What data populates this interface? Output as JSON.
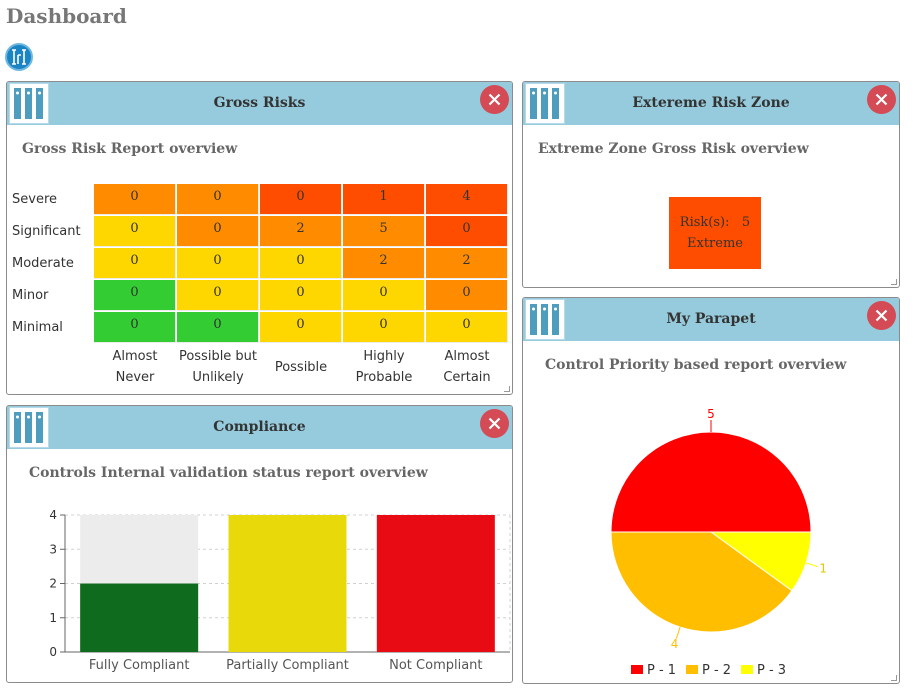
{
  "page": {
    "title": "Dashboard"
  },
  "colors": {
    "header": "#95cbdc",
    "close": "#d44a55",
    "green": "#33cc33",
    "yellow": "#ffd700",
    "orange": "#ff8c00",
    "red_orange": "#ff4d00",
    "bar_green": "#0f6b1d",
    "bar_yellow": "#e8da0a",
    "bar_red": "#e80b14",
    "bar_grey": "#ececec"
  },
  "panels": {
    "gross_risks": {
      "title": "Gross Risks",
      "subtitle": "Gross Risk Report overview",
      "chart_data": {
        "type": "heatmap",
        "rows": [
          "Severe",
          "Significant",
          "Moderate",
          "Minor",
          "Minimal"
        ],
        "columns": [
          "Almost Never",
          "Possible but Unlikely",
          "Possible",
          "Highly Probable",
          "Almost Certain"
        ],
        "column_lines": [
          [
            "Almost",
            "Never"
          ],
          [
            "Possible but",
            "Unlikely"
          ],
          [
            "Possible"
          ],
          [
            "Highly",
            "Probable"
          ],
          [
            "Almost",
            "Certain"
          ]
        ],
        "values": [
          [
            0,
            0,
            0,
            1,
            4
          ],
          [
            0,
            0,
            2,
            5,
            0
          ],
          [
            0,
            0,
            0,
            2,
            2
          ],
          [
            0,
            0,
            0,
            0,
            0
          ],
          [
            0,
            0,
            0,
            0,
            0
          ]
        ],
        "colors": [
          [
            "#ff8c00",
            "#ff8c00",
            "#ff4d00",
            "#ff4d00",
            "#ff4d00"
          ],
          [
            "#ffd700",
            "#ff8c00",
            "#ff8c00",
            "#ff8c00",
            "#ff4d00"
          ],
          [
            "#ffd700",
            "#ffd700",
            "#ffd700",
            "#ff8c00",
            "#ff8c00"
          ],
          [
            "#33cc33",
            "#ffd700",
            "#ffd700",
            "#ffd700",
            "#ff8c00"
          ],
          [
            "#33cc33",
            "#33cc33",
            "#ffd700",
            "#ffd700",
            "#ffd700"
          ]
        ]
      }
    },
    "extreme": {
      "title": "Extereme Risk Zone",
      "subtitle": "Extreme Zone Gross Risk overview",
      "risk_label": "Risk(s):",
      "risk_count": "5",
      "zone_label": "Extreme"
    },
    "compliance": {
      "title": "Compliance",
      "subtitle": "Controls Internal validation status report overview",
      "chart_data": {
        "type": "bar",
        "categories": [
          "Fully Compliant",
          "Partially Compliant",
          "Not Compliant"
        ],
        "values": [
          2,
          4,
          4
        ],
        "total": [
          4,
          4,
          4
        ],
        "colors": [
          "#0f6b1d",
          "#e8da0a",
          "#e80b14"
        ],
        "ylim": [
          0,
          4
        ],
        "yticks": [
          "0",
          "1",
          "2",
          "3",
          "4"
        ]
      }
    },
    "parapet": {
      "title": "My Parapet",
      "subtitle": "Control Priority based report overview",
      "chart_data": {
        "type": "pie",
        "slices": [
          {
            "label": "P - 1",
            "value": 5,
            "color": "#ff0000",
            "text": "5"
          },
          {
            "label": "P - 3",
            "value": 1,
            "color": "#ffff00",
            "text": "1"
          },
          {
            "label": "P - 2",
            "value": 4,
            "color": "#ffbf00",
            "text": "4"
          }
        ],
        "legend": [
          {
            "label": "P - 1",
            "color": "#ff0000"
          },
          {
            "label": "P - 2",
            "color": "#ffbf00"
          },
          {
            "label": "P - 3",
            "color": "#ffff00"
          }
        ]
      }
    }
  }
}
